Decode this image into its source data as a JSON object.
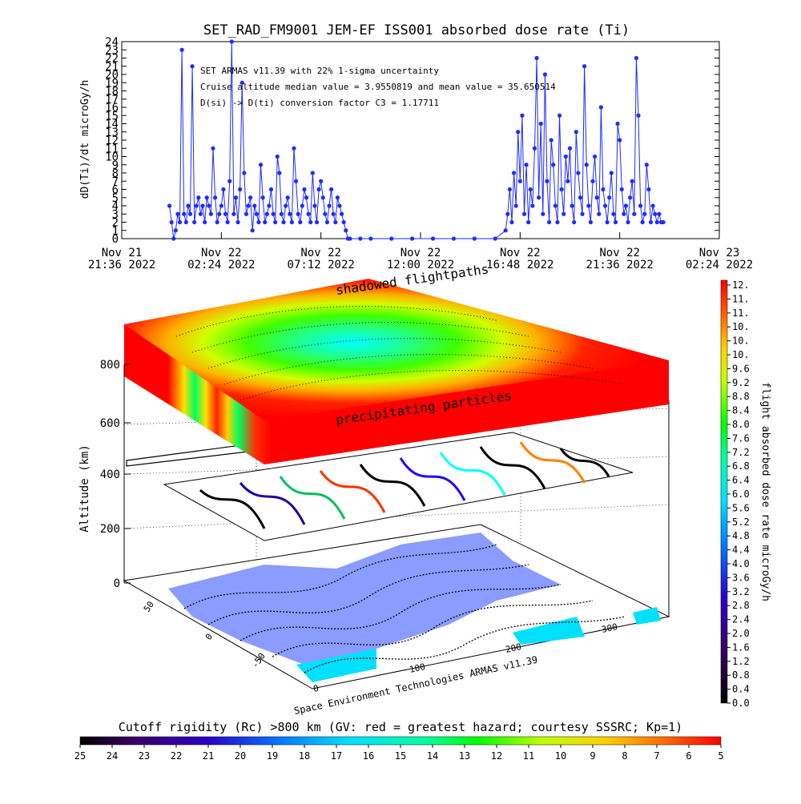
{
  "header": {
    "title": "SET_RAD_FM9001  JEM-EF ISS001 absorbed dose rate (Ti)"
  },
  "annotations": {
    "line1": "SET ARMAS v11.39 with 22% 1-sigma uncertainty",
    "line2": "Cruise altitude median value = 3.9550819 and mean value = 35.650514",
    "line3": "D(si) -> D(ti) conversion factor C3 = 1.17711"
  },
  "scene": {
    "top_label": "shadowed flightpaths",
    "mid_label": "precipitating particles",
    "altitude_label": "Altitude (km)",
    "altitude_ticks": [
      "800",
      "600",
      "400",
      "200",
      "0"
    ],
    "lat_ticks": [
      "50",
      "0",
      "-50"
    ],
    "lon_ticks": [
      "0",
      "100",
      "200",
      "300"
    ],
    "credit": "Space Environment Technologies ARMAS v11.39"
  },
  "colorbar_right": {
    "label": "flight absorbed dose rate microGy/h",
    "ticks": [
      "12.",
      "11.",
      "11.",
      "10.",
      "10.",
      "10.",
      "9.6",
      "9.2",
      "8.8",
      "8.4",
      "8.0",
      "7.6",
      "7.2",
      "6.8",
      "6.4",
      "6.0",
      "5.6",
      "5.2",
      "4.8",
      "4.4",
      "4.0",
      "3.6",
      "3.2",
      "2.8",
      "2.4",
      "2.0",
      "1.6",
      "1.2",
      "0.8",
      "0.4",
      "0.0"
    ]
  },
  "colorbar_bottom": {
    "label": "Cutoff rigidity (Rc) >800 km (GV: red = greatest hazard; courtesy SSSRC; Kp=1)",
    "ticks": [
      "25",
      "24",
      "23",
      "22",
      "21",
      "20",
      "19",
      "18",
      "17",
      "16",
      "15",
      "14",
      "13",
      "12",
      "11",
      "10",
      "9",
      "8",
      "7",
      "6",
      "5"
    ]
  },
  "colors": {
    "series": "#1f2bff",
    "hazard_high": "#ff1a00",
    "hazard_low": "#00ffff"
  },
  "chart_data": {
    "type": "line",
    "title": "SET_RAD_FM9001  JEM-EF ISS001 absorbed dose rate (Ti)",
    "ylabel": "dD(Ti)/dt microGy/h",
    "xlabel": "",
    "ylim": [
      0,
      24
    ],
    "y_ticks": [
      "0",
      "1",
      "2",
      "3",
      "4",
      "5",
      "6",
      "7",
      "8",
      "9",
      "10",
      "11",
      "12",
      "13",
      "14",
      "15",
      "16",
      "17",
      "18",
      "19",
      "20",
      "21",
      "22",
      "23",
      "24"
    ],
    "x_ticks": [
      {
        "day": "Nov 21",
        "time": "21:36 2022"
      },
      {
        "day": "Nov 22",
        "time": "02:24 2022"
      },
      {
        "day": "Nov 22",
        "time": "07:12 2022"
      },
      {
        "day": "Nov 22",
        "time": "12:00 2022"
      },
      {
        "day": "Nov 22",
        "time": "16:48 2022"
      },
      {
        "day": "Nov 22",
        "time": "21:36 2022"
      },
      {
        "day": "Nov 23",
        "time": "02:24 2022"
      }
    ],
    "x_hours_since_tick0": [
      0,
      4.8,
      9.6,
      14.4,
      19.2,
      24.0,
      28.8
    ],
    "series": [
      {
        "x": [
          2.3,
          2.4,
          2.5,
          2.6,
          2.7,
          2.8,
          2.9,
          3.0,
          3.1,
          3.2,
          3.3,
          3.4,
          3.5,
          3.6,
          3.7,
          3.8,
          3.9,
          4.0,
          4.1,
          4.2,
          4.3,
          4.4,
          4.5,
          4.6,
          4.7,
          4.8,
          4.9,
          5.0,
          5.1,
          5.2,
          5.3,
          5.4,
          5.5,
          5.6,
          5.7,
          5.8,
          5.9,
          6.0,
          6.1,
          6.2,
          6.3,
          6.4,
          6.5,
          6.6,
          6.7,
          6.8,
          6.9,
          7.0,
          7.1,
          7.2,
          7.3,
          7.4,
          7.5,
          7.6,
          7.7,
          7.8,
          7.9,
          8.0,
          8.1,
          8.2,
          8.3,
          8.4,
          8.5,
          8.6,
          8.7,
          8.8,
          8.9,
          9.0,
          9.1,
          9.2,
          9.3,
          9.4,
          9.5,
          9.6,
          9.7,
          9.8,
          9.9,
          10.0,
          10.1,
          10.2,
          10.3,
          10.4,
          10.5,
          10.6,
          10.7,
          10.8,
          10.9,
          11.0,
          11.5,
          12.0,
          13.0,
          14.0,
          15.0,
          16.0,
          17.0,
          18.0,
          18.5,
          18.6,
          18.7,
          18.8,
          18.9,
          19.0,
          19.1,
          19.2,
          19.3,
          19.4,
          19.5,
          19.6,
          19.7,
          19.8,
          19.9,
          20.0,
          20.1,
          20.2,
          20.3,
          20.4,
          20.5,
          20.6,
          20.7,
          20.8,
          20.9,
          21.0,
          21.1,
          21.2,
          21.3,
          21.4,
          21.5,
          21.6,
          21.7,
          21.8,
          21.9,
          22.0,
          22.1,
          22.2,
          22.3,
          22.4,
          22.5,
          22.6,
          22.7,
          22.8,
          22.9,
          23.0,
          23.1,
          23.2,
          23.3,
          23.4,
          23.5,
          23.6,
          23.7,
          23.8,
          23.9,
          24.0,
          24.1,
          24.2,
          24.3,
          24.4,
          24.5,
          24.6,
          24.7,
          24.8,
          24.9,
          25.0,
          25.1,
          25.2,
          25.3,
          25.4,
          25.5,
          25.6,
          25.7,
          25.8,
          25.9,
          26.0,
          26.1
        ],
        "values": [
          4,
          2,
          0,
          1,
          3,
          2,
          23,
          3,
          2,
          4,
          3,
          21,
          2,
          4,
          5,
          3,
          4,
          2,
          5,
          4,
          3,
          11,
          5,
          2,
          3,
          4,
          6,
          3,
          2,
          7,
          24,
          3,
          5,
          2,
          6,
          19,
          8,
          3,
          4,
          5,
          1,
          4,
          3,
          2,
          9,
          5,
          2,
          3,
          4,
          6,
          3,
          2,
          10,
          8,
          3,
          2,
          4,
          5,
          3,
          2,
          11,
          7,
          3,
          2,
          4,
          6,
          5,
          3,
          2,
          8,
          4,
          2,
          6,
          7,
          5,
          3,
          2,
          4,
          6,
          3,
          2,
          5,
          4,
          3,
          2,
          1,
          0,
          0,
          0,
          0,
          0,
          0,
          0,
          0,
          0,
          0,
          1,
          3,
          6,
          2,
          8,
          4,
          13,
          7,
          15,
          3,
          9,
          2,
          6,
          4,
          11,
          22,
          5,
          14,
          3,
          20,
          7,
          2,
          12,
          9,
          4,
          2,
          15,
          6,
          3,
          10,
          7,
          11,
          4,
          2,
          13,
          8,
          5,
          3,
          21,
          9,
          4,
          2,
          7,
          10,
          5,
          3,
          16,
          6,
          4,
          2,
          5,
          8,
          3,
          2,
          14,
          12,
          6,
          3,
          4,
          2,
          5,
          7,
          3,
          22,
          15,
          4,
          2,
          3,
          9,
          6,
          2,
          4,
          3,
          2,
          3,
          2,
          2
        ]
      }
    ]
  }
}
